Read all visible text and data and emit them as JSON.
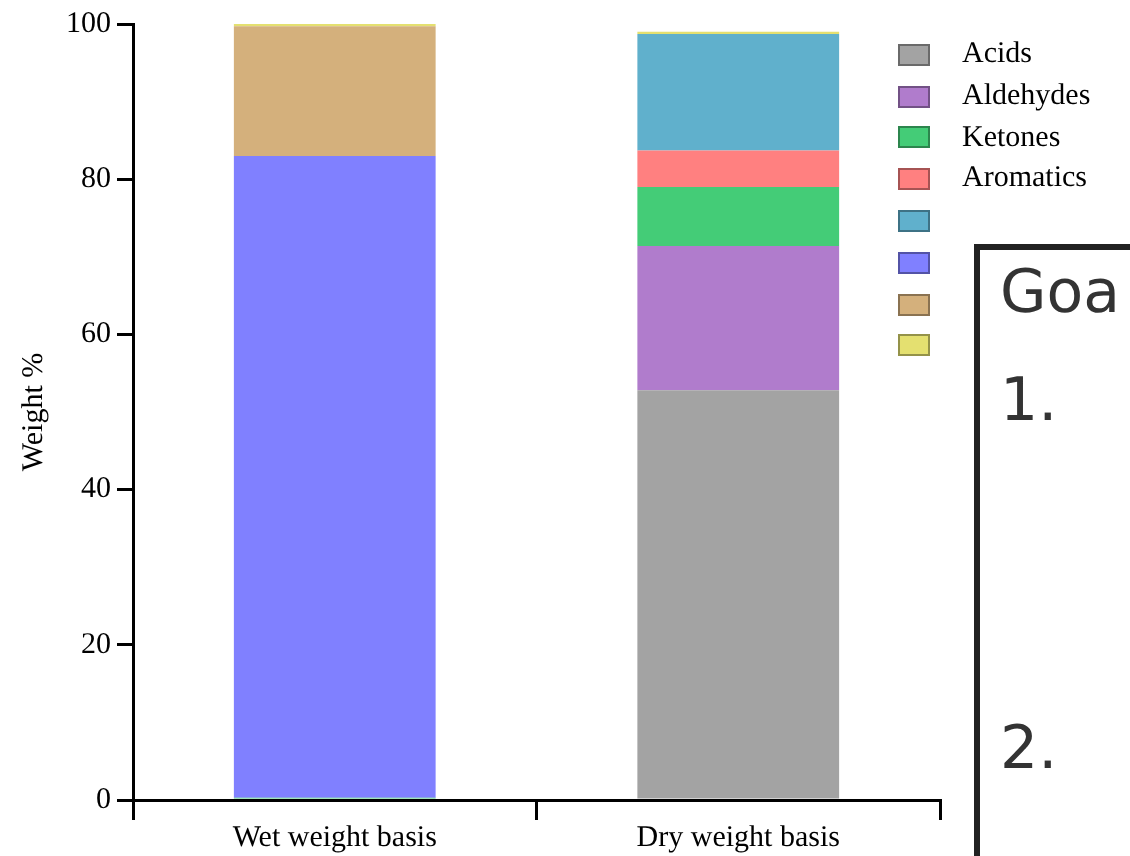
{
  "chart_data": {
    "type": "bar",
    "stacked": true,
    "ylabel": "Weight %",
    "categories": [
      "Wet weight basis",
      "Dry weight basis"
    ],
    "ylim": [
      0,
      100
    ],
    "yticks": [
      0,
      20,
      40,
      60,
      80,
      100
    ],
    "grid": false,
    "legend": "top right",
    "series": [
      {
        "name": "Acids",
        "color": "#a3a3a3",
        "values": [
          null,
          52.8
        ]
      },
      {
        "name": "Aldehydes",
        "color": "#b07ccc",
        "values": [
          null,
          18.6
        ]
      },
      {
        "name": "Ketones",
        "color": "#44cc77",
        "values": [
          0.3,
          7.6
        ]
      },
      {
        "name": "Aromatics",
        "color": "#ff8080",
        "values": [
          null,
          4.7
        ]
      },
      {
        "color": "#60b0cc",
        "values": [
          null,
          15.0
        ]
      },
      {
        "color": "#8080ff",
        "values": [
          82.7,
          null
        ]
      },
      {
        "color": "#d4b07c",
        "values": [
          16.7,
          null
        ]
      },
      {
        "color": "#e4e070",
        "values": [
          0.3,
          0.3
        ]
      }
    ],
    "annotations": [
      "Goa",
      "1.",
      "2."
    ]
  }
}
